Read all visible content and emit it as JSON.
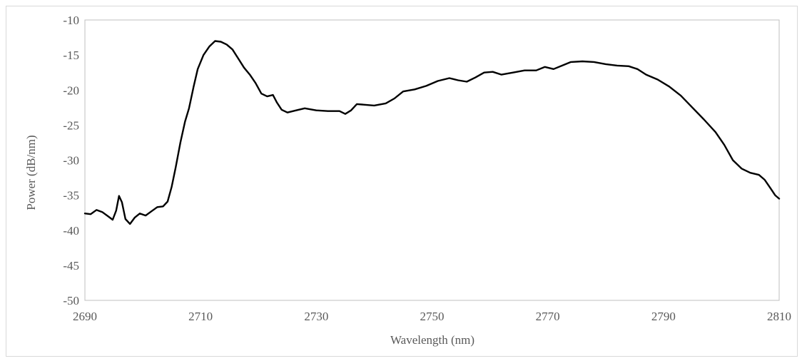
{
  "chart_data": {
    "type": "line",
    "xlabel": "Wavelength (nm)",
    "ylabel": "Power (dB/nm)",
    "xlim": [
      2690,
      2810
    ],
    "ylim": [
      -50,
      -10
    ],
    "x_ticks": [
      2690,
      2710,
      2730,
      2750,
      2770,
      2790,
      2810
    ],
    "y_ticks": [
      -10,
      -15,
      -20,
      -25,
      -30,
      -35,
      -40,
      -45,
      -50
    ],
    "grid": false,
    "legend": "none",
    "series": [
      {
        "color": "#000000",
        "points": [
          [
            2690,
            -37.6
          ],
          [
            2691,
            -37.7
          ],
          [
            2692,
            -37.1
          ],
          [
            2693,
            -37.4
          ],
          [
            2694,
            -38.0
          ],
          [
            2694.8,
            -38.5
          ],
          [
            2695.4,
            -37.2
          ],
          [
            2695.9,
            -35.1
          ],
          [
            2696.4,
            -36.0
          ],
          [
            2697,
            -38.4
          ],
          [
            2697.8,
            -39.1
          ],
          [
            2698.6,
            -38.2
          ],
          [
            2699.5,
            -37.6
          ],
          [
            2700.5,
            -37.9
          ],
          [
            2701.5,
            -37.3
          ],
          [
            2702.5,
            -36.7
          ],
          [
            2703.5,
            -36.6
          ],
          [
            2704.3,
            -35.9
          ],
          [
            2705,
            -33.8
          ],
          [
            2705.7,
            -31.0
          ],
          [
            2706.5,
            -27.5
          ],
          [
            2707.3,
            -24.5
          ],
          [
            2708,
            -22.6
          ],
          [
            2708.8,
            -19.5
          ],
          [
            2709.5,
            -17.0
          ],
          [
            2710.5,
            -15.0
          ],
          [
            2711.5,
            -13.8
          ],
          [
            2712.5,
            -13.0
          ],
          [
            2713.5,
            -13.1
          ],
          [
            2714.5,
            -13.5
          ],
          [
            2715.5,
            -14.2
          ],
          [
            2716.5,
            -15.5
          ],
          [
            2717.5,
            -16.8
          ],
          [
            2718.5,
            -17.8
          ],
          [
            2719.5,
            -19.0
          ],
          [
            2720.5,
            -20.5
          ],
          [
            2721.5,
            -20.9
          ],
          [
            2722.5,
            -20.7
          ],
          [
            2723.2,
            -21.8
          ],
          [
            2724,
            -22.8
          ],
          [
            2725,
            -23.2
          ],
          [
            2726.5,
            -22.9
          ],
          [
            2728,
            -22.6
          ],
          [
            2730,
            -22.9
          ],
          [
            2732,
            -23.0
          ],
          [
            2734,
            -23.0
          ],
          [
            2735,
            -23.4
          ],
          [
            2736,
            -22.9
          ],
          [
            2737,
            -22.0
          ],
          [
            2738.5,
            -22.1
          ],
          [
            2740,
            -22.2
          ],
          [
            2742,
            -21.9
          ],
          [
            2743.5,
            -21.2
          ],
          [
            2745,
            -20.2
          ],
          [
            2747,
            -19.9
          ],
          [
            2749,
            -19.4
          ],
          [
            2751,
            -18.7
          ],
          [
            2753,
            -18.3
          ],
          [
            2754.5,
            -18.6
          ],
          [
            2756,
            -18.8
          ],
          [
            2757.5,
            -18.2
          ],
          [
            2759,
            -17.5
          ],
          [
            2760.5,
            -17.4
          ],
          [
            2762,
            -17.8
          ],
          [
            2764,
            -17.5
          ],
          [
            2766,
            -17.2
          ],
          [
            2768,
            -17.2
          ],
          [
            2769.5,
            -16.7
          ],
          [
            2771,
            -17.0
          ],
          [
            2772.5,
            -16.5
          ],
          [
            2774,
            -16.0
          ],
          [
            2776,
            -15.9
          ],
          [
            2778,
            -16.0
          ],
          [
            2780,
            -16.3
          ],
          [
            2782,
            -16.5
          ],
          [
            2784,
            -16.6
          ],
          [
            2785.5,
            -17.0
          ],
          [
            2787,
            -17.8
          ],
          [
            2789,
            -18.5
          ],
          [
            2791,
            -19.5
          ],
          [
            2793,
            -20.8
          ],
          [
            2795,
            -22.5
          ],
          [
            2797,
            -24.2
          ],
          [
            2799,
            -26.0
          ],
          [
            2800.5,
            -27.8
          ],
          [
            2802,
            -30.0
          ],
          [
            2803.5,
            -31.2
          ],
          [
            2805,
            -31.8
          ],
          [
            2806.5,
            -32.1
          ],
          [
            2807.5,
            -32.8
          ],
          [
            2808.5,
            -34.0
          ],
          [
            2809.3,
            -35.0
          ],
          [
            2810,
            -35.5
          ]
        ]
      }
    ]
  }
}
